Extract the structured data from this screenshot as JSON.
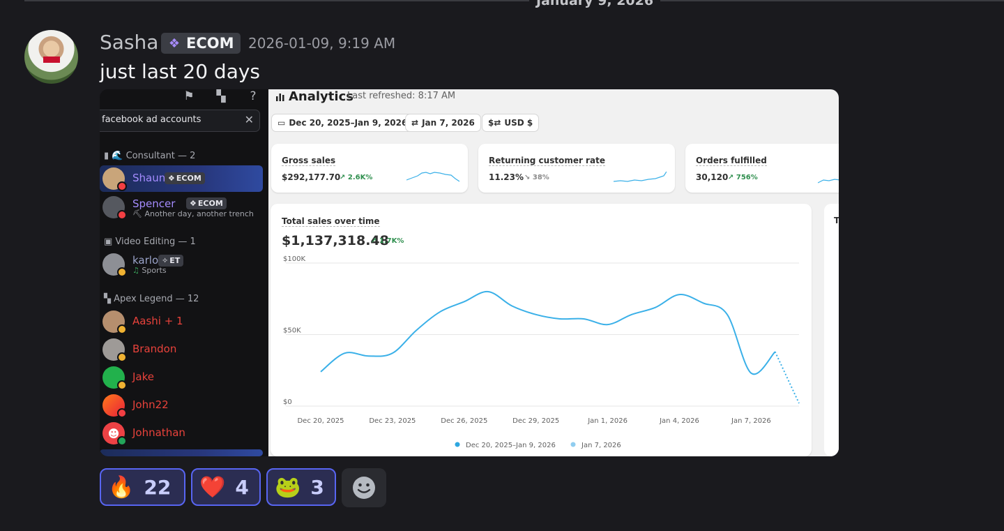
{
  "date_divider": "January 9, 2026",
  "message": {
    "author": "Sasha",
    "role_badge": "ECOM",
    "timestamp": "2026-01-09, 9:19 AM",
    "text": "just last 20 days"
  },
  "screenshot": {
    "sidebar": {
      "search_value": "facebook ad accounts",
      "categories": [
        "Consultant — 2",
        "Video Editing — 1",
        "Apex Legend — 12"
      ],
      "members": [
        {
          "name": "Shaun",
          "badge": "ECOM",
          "sub": "",
          "color": "#a58cff"
        },
        {
          "name": "Spencer",
          "badge": "ECOM",
          "sub": "Another day, another trench",
          "color": "#a58cff"
        },
        {
          "name": "karlo",
          "badge": "ET",
          "sub": "Sports",
          "color": "#9aa3c9"
        },
        {
          "name": "Aashi",
          "badge": "",
          "sub": "",
          "color": "#e8423b"
        },
        {
          "name": "Brandon",
          "badge": "",
          "sub": "",
          "color": "#e8423b"
        },
        {
          "name": "Jake",
          "badge": "",
          "sub": "",
          "color": "#e8423b"
        },
        {
          "name": "John22",
          "badge": "",
          "sub": "",
          "color": "#e8423b"
        },
        {
          "name": "Johnathan",
          "badge": "",
          "sub": "",
          "color": "#e8423b"
        }
      ]
    },
    "analytics": {
      "title": "Analytics",
      "last_refreshed": "Last refreshed: 8:17 AM",
      "filters": [
        "Dec 20, 2025–Jan 9, 2026",
        "Jan 7, 2026",
        "USD $"
      ],
      "metrics": [
        {
          "label": "Gross sales",
          "value": "$292,177.70",
          "change": "2.6K%",
          "direction": "up"
        },
        {
          "label": "Returning customer rate",
          "value": "11.23%",
          "change": "38%",
          "direction": "down"
        },
        {
          "label": "Orders fulfilled",
          "value": "30,120",
          "change": "756%",
          "direction": "up"
        }
      ],
      "side_card_initial": "T",
      "chart_data": {
        "type": "line",
        "title": "Total sales over time",
        "total": "$1,137,318.48",
        "change": "1.7K%",
        "x": [
          "Dec 20, 2025",
          "Dec 21, 2025",
          "Dec 22, 2025",
          "Dec 23, 2025",
          "Dec 24, 2025",
          "Dec 25, 2025",
          "Dec 26, 2025",
          "Dec 27, 2025",
          "Dec 28, 2025",
          "Dec 29, 2025",
          "Dec 30, 2025",
          "Dec 31, 2025",
          "Jan 1, 2026",
          "Jan 2, 2026",
          "Jan 3, 2026",
          "Jan 4, 2026",
          "Jan 5, 2026",
          "Jan 6, 2026",
          "Jan 7, 2026",
          "Jan 8, 2026",
          "Jan 9, 2026"
        ],
        "x_tick_labels": [
          "Dec 20, 2025",
          "Dec 23, 2025",
          "Dec 26, 2025",
          "Dec 29, 2025",
          "Jan 1, 2026",
          "Jan 4, 2026",
          "Jan 7, 2026"
        ],
        "y_tick_labels": [
          "$0",
          "$50K",
          "$100K"
        ],
        "ylim": [
          0,
          100000
        ],
        "series": [
          {
            "name": "Dec 20, 2025–Jan 9, 2026",
            "values": [
              24000,
              37000,
              35000,
              37000,
              53000,
              66000,
              73000,
              80000,
              70000,
              64000,
              61000,
              61000,
              57000,
              64000,
              69000,
              78000,
              72000,
              64000,
              23000,
              38000,
              2000
            ],
            "dotted_from_index": 19,
            "color": "#3ab0e8"
          }
        ],
        "legend": [
          {
            "name": "Dec 20, 2025–Jan 9, 2026",
            "color": "#2ea7e0"
          },
          {
            "name": "Jan 7, 2026",
            "color": "#90cdf0"
          }
        ]
      }
    }
  },
  "reactions": [
    {
      "emoji": "🔥",
      "count": "22"
    },
    {
      "emoji": "❤️",
      "count": "4"
    },
    {
      "emoji": "🐸",
      "count": "3"
    }
  ]
}
